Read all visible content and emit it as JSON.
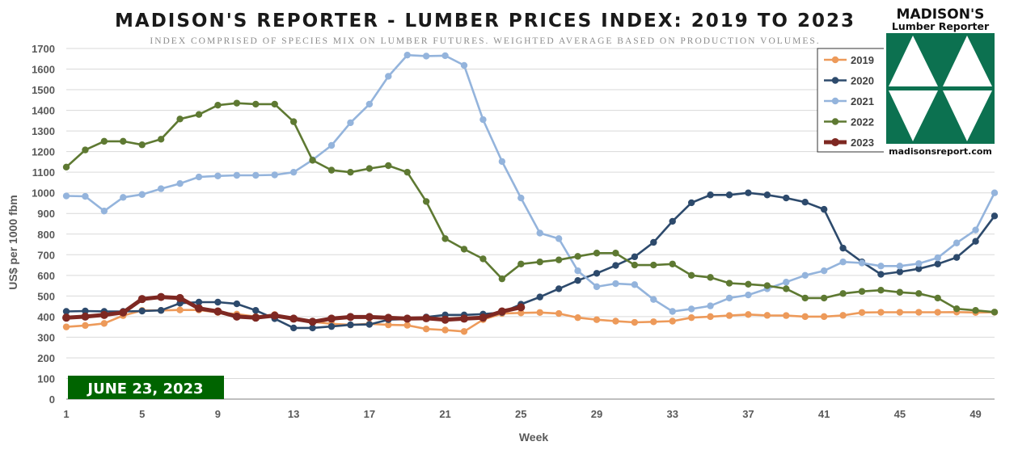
{
  "chart_data": {
    "type": "line",
    "title": "MADISON'S REPORTER - LUMBER PRICES INDEX: 2019 TO 2023",
    "subtitle": "INDEX COMPRISED OF SPECIES MIX ON LUMBER FUTURES. WEIGHTED AVERAGE BASED ON PRODUCTION VOLUMES.",
    "xlabel": "Week",
    "ylabel": "US$ per 1000 fbm",
    "xlim": [
      1,
      50
    ],
    "ylim": [
      0,
      1700
    ],
    "x_ticks": [
      "1",
      "5",
      "9",
      "13",
      "17",
      "21",
      "25",
      "29",
      "33",
      "37",
      "41",
      "45",
      "49"
    ],
    "y_ticks": [
      "0",
      "100",
      "200",
      "300",
      "400",
      "500",
      "600",
      "700",
      "800",
      "900",
      "1000",
      "1100",
      "1200",
      "1300",
      "1400",
      "1500",
      "1600",
      "1700"
    ],
    "grid": "horizontal",
    "legend_position": "top-right",
    "series": [
      {
        "name": "2019",
        "color": "#ED9A5A",
        "start_week": 1,
        "values": [
          350,
          357,
          367,
          405,
          430,
          430,
          432,
          432,
          420,
          412,
          400,
          410,
          390,
          375,
          365,
          360,
          365,
          360,
          358,
          340,
          335,
          328,
          385,
          415,
          418,
          420,
          415,
          395,
          385,
          378,
          372,
          375,
          378,
          395,
          400,
          405,
          410,
          406,
          405,
          400,
          400,
          406,
          420,
          421,
          421,
          421,
          421,
          422,
          420,
          421
        ]
      },
      {
        "name": "2020",
        "color": "#2D4A6C",
        "start_week": 1,
        "values": [
          425,
          427,
          425,
          425,
          427,
          430,
          465,
          470,
          470,
          462,
          430,
          390,
          345,
          345,
          352,
          360,
          362,
          385,
          388,
          398,
          408,
          408,
          412,
          420,
          460,
          495,
          535,
          575,
          610,
          648,
          690,
          760,
          862,
          952,
          990,
          990,
          1000,
          990,
          975,
          955,
          920,
          732,
          665,
          605,
          617,
          632,
          655,
          687,
          765,
          888
        ]
      },
      {
        "name": "2021",
        "color": "#94B4DC",
        "start_week": 1,
        "values": [
          985,
          983,
          912,
          978,
          992,
          1020,
          1045,
          1077,
          1082,
          1085,
          1085,
          1087,
          1100,
          1160,
          1230,
          1340,
          1430,
          1565,
          1668,
          1663,
          1665,
          1618,
          1355,
          1152,
          975,
          805,
          778,
          622,
          545,
          560,
          555,
          483,
          425,
          437,
          452,
          490,
          505,
          535,
          567,
          600,
          622,
          665,
          660,
          645,
          645,
          657,
          685,
          757,
          820,
          1000
        ]
      },
      {
        "name": "2022",
        "color": "#5E7932",
        "start_week": 1,
        "values": [
          1125,
          1208,
          1250,
          1250,
          1233,
          1260,
          1358,
          1380,
          1425,
          1435,
          1430,
          1430,
          1345,
          1158,
          1110,
          1100,
          1118,
          1132,
          1100,
          958,
          778,
          727,
          680,
          583,
          655,
          665,
          675,
          692,
          708,
          708,
          650,
          650,
          655,
          600,
          590,
          562,
          557,
          550,
          535,
          490,
          490,
          512,
          522,
          528,
          518,
          512,
          490,
          438,
          430,
          422
        ]
      },
      {
        "name": "2023",
        "color": "#7E2822",
        "start_week": 1,
        "values": [
          395,
          400,
          408,
          420,
          485,
          495,
          490,
          440,
          425,
          400,
          395,
          405,
          390,
          375,
          390,
          398,
          398,
          394,
          390,
          392,
          385,
          390,
          395,
          425,
          445
        ]
      }
    ],
    "annotation": "JUNE 23, 2023"
  },
  "logo": {
    "name_line1": "MADISON'S",
    "name_line2": "Lumber Reporter",
    "url": "madisonsreport.com",
    "color": "#0C7150"
  },
  "colors": {
    "grid": "#d9d9d9",
    "axis": "#7f7f7f",
    "annotation_bg": "#006400"
  }
}
